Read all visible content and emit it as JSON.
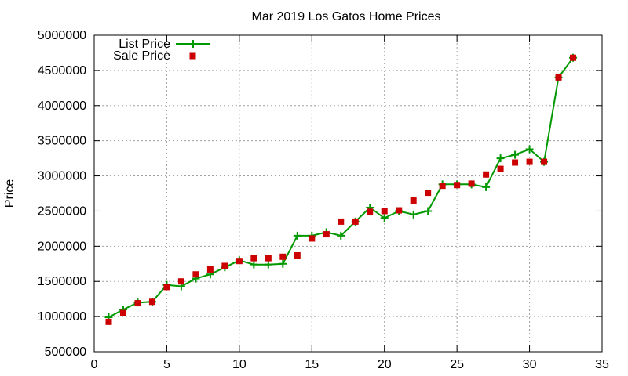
{
  "chart_data": {
    "type": "line",
    "title": "Mar 2019 Los Gatos Home Prices",
    "xlabel": "",
    "ylabel": "Price",
    "xlim": [
      0,
      35
    ],
    "ylim": [
      500000,
      5000000
    ],
    "x_ticks": [
      0,
      5,
      10,
      15,
      20,
      25,
      30,
      35
    ],
    "y_ticks": [
      500000,
      1000000,
      1500000,
      2000000,
      2500000,
      3000000,
      3500000,
      4000000,
      4500000,
      5000000
    ],
    "grid": true,
    "legend_position": "top-left",
    "x": [
      1,
      2,
      3,
      4,
      5,
      6,
      7,
      8,
      9,
      10,
      11,
      12,
      13,
      14,
      15,
      16,
      17,
      18,
      19,
      20,
      21,
      22,
      23,
      24,
      25,
      26,
      27,
      28,
      29,
      30,
      31,
      32,
      33
    ],
    "series": [
      {
        "name": "List Price",
        "style": "line+cross",
        "color": "#009900",
        "values": [
          990000,
          1100000,
          1200000,
          1210000,
          1450000,
          1430000,
          1540000,
          1600000,
          1700000,
          1800000,
          1740000,
          1740000,
          1750000,
          2150000,
          2150000,
          2200000,
          2150000,
          2350000,
          2550000,
          2400000,
          2500000,
          2450000,
          2500000,
          2880000,
          2880000,
          2880000,
          2840000,
          3250000,
          3300000,
          3380000,
          3200000,
          4400000,
          4680000
        ]
      },
      {
        "name": "Sale Price",
        "style": "square",
        "color": "#cc0000",
        "values": [
          925000,
          1050000,
          1190000,
          1210000,
          1420000,
          1500000,
          1600000,
          1670000,
          1720000,
          1790000,
          1830000,
          1830000,
          1850000,
          1870000,
          2110000,
          2170000,
          2350000,
          2350000,
          2490000,
          2500000,
          2510000,
          2650000,
          2760000,
          2860000,
          2870000,
          2890000,
          3020000,
          3100000,
          3190000,
          3200000,
          3200000,
          4400000,
          4680000
        ]
      }
    ]
  }
}
